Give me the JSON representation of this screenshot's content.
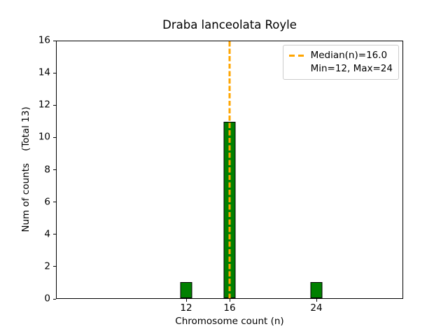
{
  "title": "Draba lanceolata Royle",
  "axes": {
    "x": {
      "label": "Chromosome count (n)",
      "ticks": [
        12,
        16,
        24
      ],
      "range": [
        0,
        32
      ]
    },
    "y": {
      "label": "Num of counts    (Total 13)",
      "ticks": [
        0,
        2,
        4,
        6,
        8,
        10,
        12,
        14,
        16
      ],
      "range": [
        0,
        16
      ]
    }
  },
  "legend": {
    "entries": [
      {
        "label": "Median(n)=16.0",
        "marker": "orange-dashed-line"
      },
      {
        "label": "Min=12, Max=24",
        "marker": "none"
      }
    ]
  },
  "colors": {
    "bar_fill": "#008000",
    "bar_edge": "#000000",
    "median_line": "#FFA500",
    "legend_border": "#cccccc",
    "axis": "#000000"
  },
  "chart_data": {
    "type": "bar",
    "title": "Draba lanceolata Royle",
    "xlabel": "Chromosome count (n)",
    "ylabel": "Num of counts    (Total 13)",
    "categories": [
      12,
      16,
      24
    ],
    "values": [
      1,
      11,
      1
    ],
    "total_counts": 13,
    "median": 16.0,
    "min": 12,
    "max": 24,
    "xlim": [
      0,
      32
    ],
    "ylim": [
      0,
      16
    ],
    "x_ticks": [
      12,
      16,
      24
    ],
    "y_ticks": [
      0,
      2,
      4,
      6,
      8,
      10,
      12,
      14,
      16
    ],
    "grid": false,
    "legend_position": "upper-right",
    "bar_color": "#008000",
    "median_line_color": "#FFA500",
    "median_line_style": "dashed"
  }
}
